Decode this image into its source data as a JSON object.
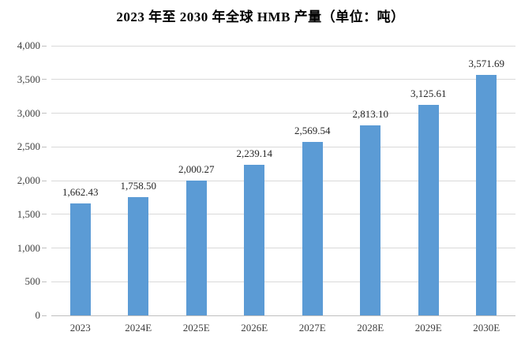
{
  "chart_data": {
    "type": "bar",
    "title": "2023 年至 2030 年全球 HMB 产量（单位：吨）",
    "categories": [
      "2023",
      "2024E",
      "2025E",
      "2026E",
      "2027E",
      "2028E",
      "2029E",
      "2030E"
    ],
    "values": [
      1662.43,
      1758.5,
      2000.27,
      2239.14,
      2569.54,
      2813.1,
      3125.61,
      3571.69
    ],
    "value_labels": [
      "1,662.43",
      "1,758.50",
      "2,000.27",
      "2,239.14",
      "2,569.54",
      "2,813.10",
      "3,125.61",
      "3,571.69"
    ],
    "xlabel": "",
    "ylabel": "",
    "ylim": [
      0,
      4000
    ],
    "ytick_step": 500,
    "ytick_labels": [
      "0",
      "500",
      "1,000",
      "1,500",
      "2,000",
      "2,500",
      "3,000",
      "3,500",
      "4,000"
    ],
    "grid": true,
    "legend": false,
    "colors": {
      "bar": "#5B9BD5",
      "gridline": "#D9D9D9",
      "axis_line": "#BFBFBF",
      "tick": "#BFBFBF",
      "axis_text": "#3F3F3F",
      "value_label_text": "#262626",
      "title_text": "#000000"
    }
  }
}
